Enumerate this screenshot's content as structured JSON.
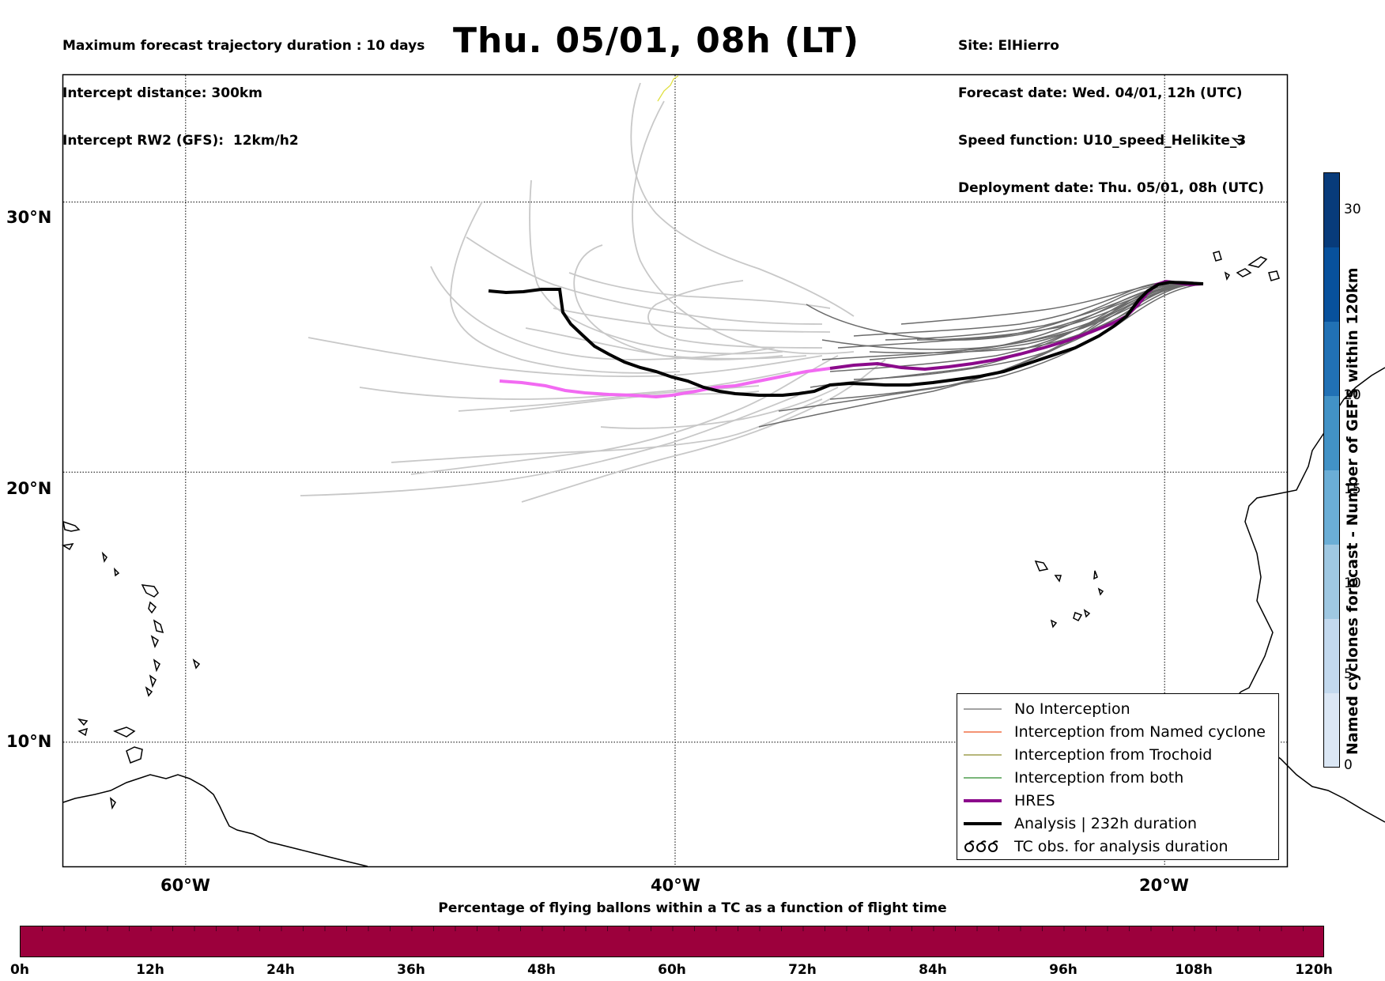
{
  "header_left": [
    "Maximum forecast trajectory duration : 10 days",
    "Intercept distance: 300km",
    "Intercept RW2 (GFS):  12km/h2"
  ],
  "title": "Thu. 05/01, 08h (LT)",
  "header_right": [
    "Site: ElHierro",
    "Forecast date: Wed. 04/01, 12h (UTC)",
    "Speed function: U10_speed_Helikite_3",
    "Deployment date: Thu. 05/01, 08h (UTC)"
  ],
  "map": {
    "lat_labels": [
      "30°N",
      "20°N",
      "10°N"
    ],
    "lon_labels": [
      "60°W",
      "40°W",
      "20°W"
    ],
    "lat_values": [
      30,
      20,
      10
    ],
    "lon_values": [
      -60,
      -40,
      -20
    ],
    "extent": {
      "lon_min": -65,
      "lon_max": -15,
      "lat_min": 5.4,
      "lat_max": 34.7
    },
    "colors": {
      "no_interception": "#6b6b6b",
      "early_tracks": "#c8c8c8",
      "hres_early": "#f26af2",
      "hres": "#8b0a8b",
      "analysis": "#000000",
      "trochoid": "#8c8c2c",
      "named": "#ee5522",
      "both": "#2a8a2a"
    }
  },
  "colorbar": {
    "title": "Named cyclones forecast - Number of GEFS within 120km",
    "ticks": [
      "0",
      "5",
      "10",
      "15",
      "20",
      "30"
    ],
    "colors": [
      "#dbe7f5",
      "#c3d9ee",
      "#9fc8e2",
      "#6baed6",
      "#4292c6",
      "#2171b5",
      "#08519c",
      "#083b7a"
    ]
  },
  "bottom_bar": {
    "caption": "Percentage of flying ballons within a TC as a function of flight time",
    "ticks": [
      "0h",
      "12h",
      "24h",
      "36h",
      "48h",
      "60h",
      "72h",
      "84h",
      "96h",
      "108h",
      "120h"
    ],
    "color": "#9c003c"
  },
  "legend": [
    {
      "label": "No Interception",
      "style": "thin",
      "color": "#6b6b6b"
    },
    {
      "label": "Interception from Named cyclone",
      "style": "thin",
      "color": "#ee5522"
    },
    {
      "label": "Interception from Trochoid",
      "style": "thin",
      "color": "#8c8c2c"
    },
    {
      "label": "Interception from both",
      "style": "thin",
      "color": "#2a8a2a"
    },
    {
      "label": "HRES",
      "style": "thick",
      "color": "#8b0a8b"
    },
    {
      "label": "Analysis | 232h duration",
      "style": "thick",
      "color": "#000000"
    },
    {
      "label": "TC obs. for analysis duration",
      "style": "symbol",
      "color": "#000000"
    }
  ]
}
